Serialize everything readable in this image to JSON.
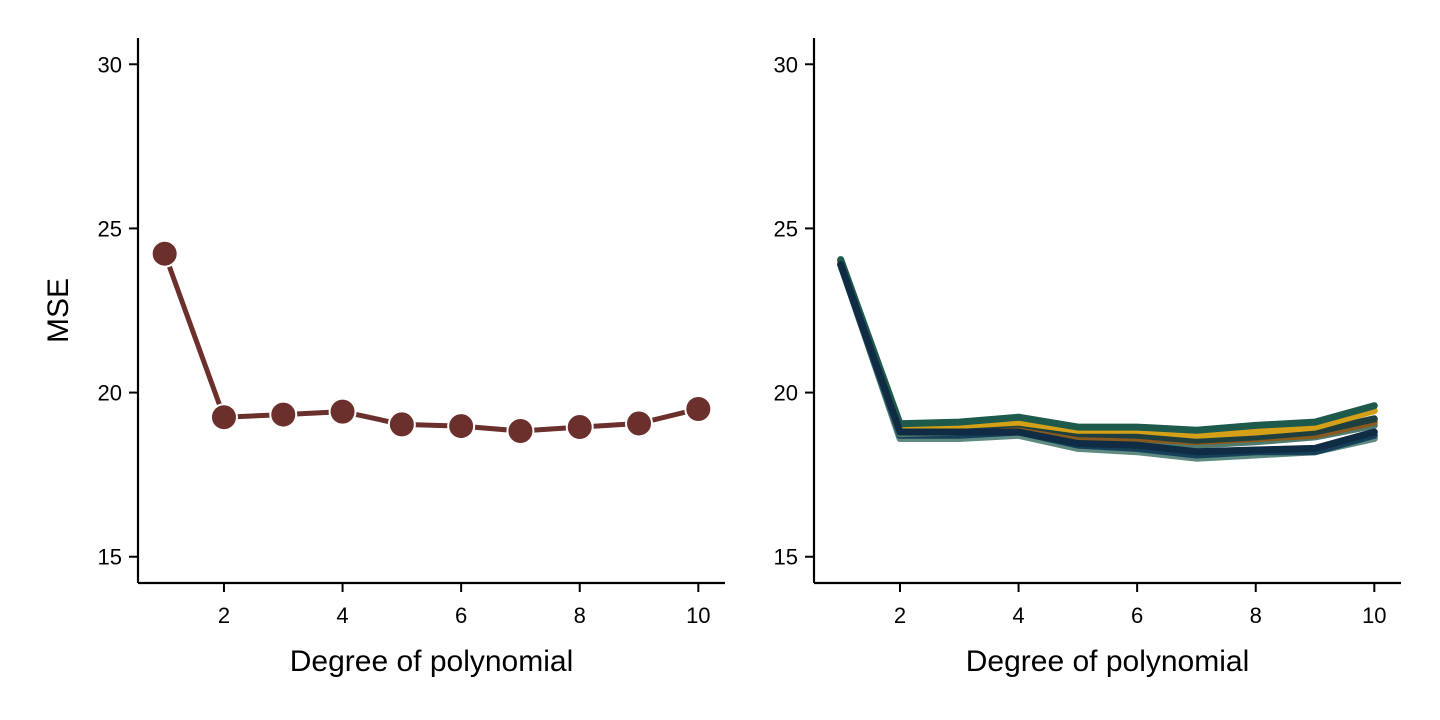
{
  "chart_data": [
    {
      "type": "line",
      "title": "",
      "xlabel": "Degree of polynomial",
      "ylabel": "MSE",
      "xlim": [
        0.55,
        10.45
      ],
      "ylim": [
        14.2,
        30.8
      ],
      "xticks": [
        2,
        4,
        6,
        8,
        10
      ],
      "yticks": [
        15,
        20,
        25,
        30
      ],
      "grid": false,
      "markers": true,
      "series": [
        {
          "color": "#6b2f2c",
          "x": [
            1,
            2,
            3,
            4,
            5,
            6,
            7,
            8,
            9,
            10
          ],
          "y": [
            24.23,
            19.25,
            19.33,
            19.42,
            19.03,
            18.98,
            18.83,
            18.95,
            19.06,
            19.5
          ]
        }
      ]
    },
    {
      "type": "line",
      "title": "",
      "xlabel": "Degree of polynomial",
      "ylabel": "",
      "xlim": [
        0.55,
        10.45
      ],
      "ylim": [
        14.2,
        30.8
      ],
      "xticks": [
        2,
        4,
        6,
        8,
        10
      ],
      "yticks": [
        15,
        20,
        25,
        30
      ],
      "grid": false,
      "markers": false,
      "series": [
        {
          "color": "#5e8a82",
          "x": [
            1,
            2,
            3,
            4,
            5,
            6,
            7,
            8,
            9,
            10
          ],
          "y": [
            23.9,
            18.6,
            18.6,
            18.7,
            18.3,
            18.2,
            18.0,
            18.1,
            18.2,
            18.6
          ]
        },
        {
          "color": "#16405a",
          "x": [
            1,
            2,
            3,
            4,
            5,
            6,
            7,
            8,
            9,
            10
          ],
          "y": [
            23.9,
            18.7,
            18.7,
            18.8,
            18.4,
            18.3,
            18.1,
            18.2,
            18.2,
            18.7
          ]
        },
        {
          "color": "#4f7a6e",
          "x": [
            1,
            2,
            3,
            4,
            5,
            6,
            7,
            8,
            9,
            10
          ],
          "y": [
            23.95,
            18.75,
            18.8,
            18.9,
            18.55,
            18.5,
            18.4,
            18.5,
            18.65,
            19.0
          ]
        },
        {
          "color": "#8a5a1c",
          "x": [
            1,
            2,
            3,
            4,
            5,
            6,
            7,
            8,
            9,
            10
          ],
          "y": [
            24.0,
            18.85,
            18.9,
            19.0,
            18.65,
            18.6,
            18.5,
            18.6,
            18.7,
            19.1
          ]
        },
        {
          "color": "#1f3f3f",
          "x": [
            1,
            2,
            3,
            4,
            5,
            6,
            7,
            8,
            9,
            10
          ],
          "y": [
            24.0,
            18.9,
            18.95,
            19.05,
            18.75,
            18.7,
            18.55,
            18.65,
            18.8,
            19.2
          ]
        },
        {
          "color": "#d4a017",
          "x": [
            1,
            2,
            3,
            4,
            5,
            6,
            7,
            8,
            9,
            10
          ],
          "y": [
            24.0,
            18.95,
            19.0,
            19.1,
            18.85,
            18.85,
            18.7,
            18.8,
            18.95,
            19.45
          ]
        },
        {
          "color": "#1e5a4c",
          "x": [
            1,
            2,
            3,
            4,
            5,
            6,
            7,
            8,
            9,
            10
          ],
          "y": [
            24.05,
            19.05,
            19.1,
            19.25,
            18.95,
            18.95,
            18.85,
            19.0,
            19.1,
            19.6
          ]
        },
        {
          "color": "#0f2c44",
          "x": [
            1,
            2,
            3,
            4,
            5,
            6,
            7,
            8,
            9,
            10
          ],
          "y": [
            23.9,
            18.8,
            18.8,
            18.8,
            18.45,
            18.4,
            18.2,
            18.25,
            18.3,
            18.8
          ]
        }
      ]
    }
  ]
}
